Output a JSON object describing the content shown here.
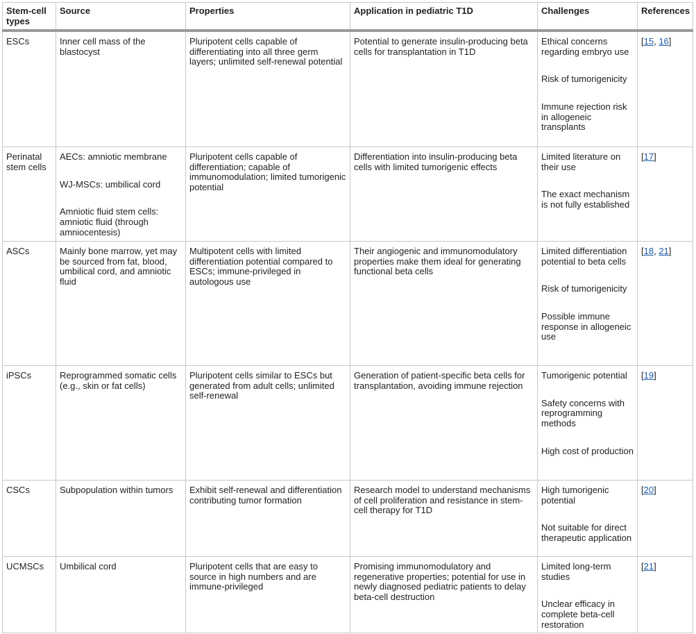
{
  "table": {
    "header": [
      "Stem-cell types",
      "Source",
      "Properties",
      "Application in pediatric T1D",
      "Challenges",
      "References"
    ],
    "rows": [
      {
        "type": "ESCs",
        "source": [
          "Inner cell mass of the blastocyst"
        ],
        "properties": "Pluripotent cells capable of differentiating into all three germ layers; unlimited self-renewal potential",
        "application": "Potential to generate insulin-producing beta cells for transplantation in T1D",
        "challenges": [
          "Ethical concerns regarding embryo use",
          "Risk of tumorigenicity",
          "Immune rejection risk in allogeneic transplants"
        ],
        "references": [
          "[",
          {
            "link": "15"
          },
          ", ",
          {
            "link": "16"
          },
          "]"
        ]
      },
      {
        "type": "Perinatal stem cells",
        "source": [
          "AECs: amniotic membrane",
          "WJ-MSCs: umbilical cord",
          "Amniotic fluid stem cells: amniotic fluid (through amniocentesis)"
        ],
        "properties": "Pluripotent cells capable of differentiation; capable of immunomodulation; limited tumorigenic potential",
        "application": "Differentiation into insulin-producing beta cells with limited tumorigenic effects",
        "challenges": [
          "Limited literature on their use",
          "The exact mechanism is not fully established"
        ],
        "references": [
          "[",
          {
            "link": "17"
          },
          "]"
        ]
      },
      {
        "type": "ASCs",
        "source": [
          "Mainly bone marrow, yet may be sourced from fat, blood, umbilical cord, and amniotic fluid"
        ],
        "properties": "Multipotent cells with limited differentiation potential compared to ESCs; immune-privileged in autologous use",
        "application": "Their angiogenic and immunomodulatory properties make them ideal for generating functional beta cells",
        "challenges": [
          "Limited differentiation potential to beta cells",
          "Risk of tumorigenicity",
          "Possible immune response in allogeneic use"
        ],
        "references": [
          "[",
          {
            "link": "18"
          },
          ", ",
          {
            "link": "21"
          },
          "]"
        ]
      },
      {
        "type": "iPSCs",
        "source": [
          "Reprogrammed somatic cells (e.g., skin or fat cells)"
        ],
        "properties": "Pluripotent cells similar to ESCs but generated from adult cells; unlimited self-renewal",
        "application": "Generation of patient-specific beta cells for transplantation, avoiding immune rejection",
        "challenges": [
          "Tumorigenic potential",
          "Safety concerns with reprogramming methods",
          "High cost of production"
        ],
        "references": [
          "[",
          {
            "link": "19"
          },
          "]"
        ]
      },
      {
        "type": "CSCs",
        "source": [
          "Subpopulation within tumors"
        ],
        "properties": "Exhibit self-renewal and differentiation contributing tumor formation",
        "application": "Research model to understand mechanisms of cell proliferation and resistance in stem-cell therapy for T1D",
        "challenges": [
          "High tumorigenic potential",
          "Not suitable for direct therapeutic application"
        ],
        "references": [
          "[",
          {
            "link": "20"
          },
          "]"
        ]
      },
      {
        "type": "UCMSCs",
        "source": [
          "Umbilical cord"
        ],
        "properties": "Pluripotent cells that are easy to source in high numbers and are immune-privileged",
        "application": "Promising immunomodulatory and regenerative properties; potential for use in newly diagnosed pediatric patients to delay beta-cell destruction",
        "challenges": [
          "Limited long-term studies",
          "Unclear efficacy in complete beta-cell restoration"
        ],
        "references": [
          "[",
          {
            "link": "21"
          },
          "]"
        ]
      }
    ]
  }
}
